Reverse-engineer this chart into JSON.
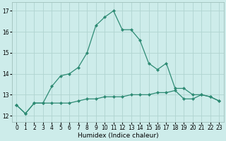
{
  "xlabel": "Humidex (Indice chaleur)",
  "x_ticks": [
    0,
    1,
    2,
    3,
    4,
    5,
    6,
    7,
    8,
    9,
    10,
    11,
    12,
    13,
    14,
    15,
    16,
    17,
    18,
    19,
    20,
    21,
    22,
    23
  ],
  "xlim": [
    -0.5,
    23.5
  ],
  "ylim": [
    11.7,
    17.4
  ],
  "yticks": [
    12,
    13,
    14,
    15,
    16,
    17
  ],
  "line1_x": [
    0,
    1,
    2,
    3,
    4,
    5,
    6,
    7,
    8,
    9,
    10,
    11,
    12,
    13,
    14,
    15,
    16,
    17,
    18,
    19,
    20,
    21,
    22,
    23
  ],
  "line1_y": [
    12.5,
    12.1,
    12.6,
    12.6,
    12.6,
    12.6,
    12.6,
    12.7,
    12.8,
    12.8,
    12.9,
    12.9,
    12.9,
    13.0,
    13.0,
    13.0,
    13.1,
    13.1,
    13.2,
    12.8,
    12.8,
    13.0,
    12.9,
    12.7
  ],
  "line2_x": [
    0,
    1,
    2,
    3,
    4,
    5,
    6,
    7,
    8,
    9,
    10,
    11,
    12,
    13,
    14,
    15,
    16,
    17,
    18,
    19,
    20,
    21,
    22,
    23
  ],
  "line2_y": [
    12.5,
    12.1,
    12.6,
    12.6,
    13.4,
    13.9,
    14.0,
    14.3,
    15.0,
    16.3,
    16.7,
    17.0,
    16.1,
    16.1,
    15.6,
    14.5,
    14.2,
    14.5,
    13.3,
    13.3,
    13.0,
    13.0,
    12.9,
    12.7
  ],
  "line_color": "#2e8b74",
  "bg_color": "#cdecea",
  "grid_color": "#b0d4d0",
  "marker": "D",
  "marker_size": 2.0,
  "line_width": 0.9,
  "tick_fontsize": 5.5,
  "xlabel_fontsize": 6.5
}
